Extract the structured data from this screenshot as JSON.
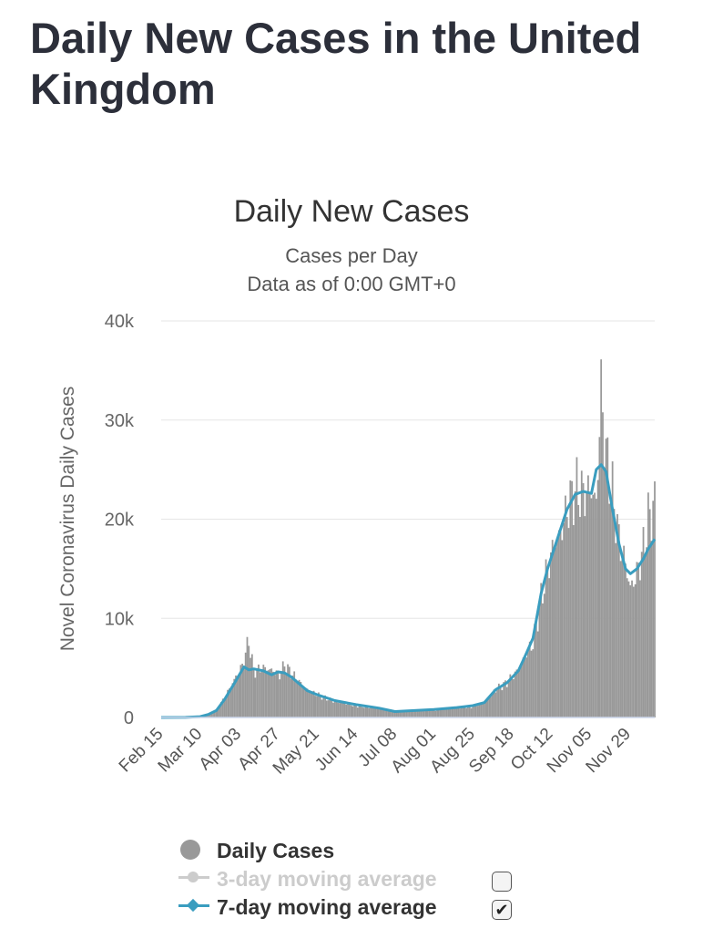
{
  "page": {
    "title": "Daily New Cases in the United Kingdom"
  },
  "chart_data": {
    "type": "bar",
    "title": "Daily New Cases",
    "subtitle": "Cases per Day",
    "subtitle2": "Data as of 0:00 GMT+0",
    "ylabel": "Novel Coronavirus Daily Cases",
    "xlabel": "",
    "ylim": [
      0,
      40000
    ],
    "y_ticks": [
      0,
      10000,
      20000,
      30000,
      40000
    ],
    "y_tick_labels": [
      "0",
      "10k",
      "20k",
      "30k",
      "40k"
    ],
    "grid": true,
    "legend_position": "bottom-left",
    "x_start": "2020-02-15",
    "x_end": "2020-12-15",
    "x_tick_labels": [
      "Feb 15",
      "Mar 10",
      "Apr 03",
      "Apr 27",
      "May 21",
      "Jun 14",
      "Jul 08",
      "Aug 01",
      "Aug 25",
      "Sep 18",
      "Oct 12",
      "Nov 05",
      "Nov 29"
    ],
    "daily_cases_keypoints": [
      [
        "2020-02-15",
        0
      ],
      [
        "2020-03-01",
        10
      ],
      [
        "2020-03-10",
        60
      ],
      [
        "2020-03-15",
        300
      ],
      [
        "2020-03-20",
        700
      ],
      [
        "2020-03-25",
        2000
      ],
      [
        "2020-03-31",
        3800
      ],
      [
        "2020-04-05",
        5200
      ],
      [
        "2020-04-09",
        7800
      ],
      [
        "2020-04-12",
        4600
      ],
      [
        "2020-04-18",
        5000
      ],
      [
        "2020-04-24",
        4700
      ],
      [
        "2020-04-28",
        4300
      ],
      [
        "2020-05-01",
        5300
      ],
      [
        "2020-05-05",
        4500
      ],
      [
        "2020-05-10",
        3600
      ],
      [
        "2020-05-15",
        2800
      ],
      [
        "2020-05-21",
        2300
      ],
      [
        "2020-06-01",
        1600
      ],
      [
        "2020-06-14",
        1200
      ],
      [
        "2020-06-28",
        900
      ],
      [
        "2020-07-08",
        600
      ],
      [
        "2020-07-20",
        700
      ],
      [
        "2020-08-01",
        750
      ],
      [
        "2020-08-15",
        1000
      ],
      [
        "2020-08-25",
        1100
      ],
      [
        "2020-09-01",
        1500
      ],
      [
        "2020-09-08",
        2800
      ],
      [
        "2020-09-15",
        3500
      ],
      [
        "2020-09-22",
        4800
      ],
      [
        "2020-09-27",
        6500
      ],
      [
        "2020-10-01",
        7500
      ],
      [
        "2020-10-06",
        12000
      ],
      [
        "2020-10-10",
        15000
      ],
      [
        "2020-10-14",
        17500
      ],
      [
        "2020-10-18",
        18500
      ],
      [
        "2020-10-22",
        21000
      ],
      [
        "2020-10-27",
        23000
      ],
      [
        "2020-11-01",
        22500
      ],
      [
        "2020-11-06",
        23000
      ],
      [
        "2020-11-09",
        21500
      ],
      [
        "2020-11-12",
        33000
      ],
      [
        "2020-11-15",
        26500
      ],
      [
        "2020-11-19",
        22500
      ],
      [
        "2020-11-23",
        18000
      ],
      [
        "2020-11-27",
        15500
      ],
      [
        "2020-11-30",
        13000
      ],
      [
        "2020-12-04",
        14500
      ],
      [
        "2020-12-08",
        17000
      ],
      [
        "2020-12-11",
        20000
      ],
      [
        "2020-12-15",
        21500
      ]
    ],
    "series": [
      {
        "name": "Daily Cases",
        "color": "#999999"
      },
      {
        "name": "3-day moving average",
        "color": "#cccccc",
        "visible": false
      },
      {
        "name": "7-day moving average",
        "color": "#3a9dbf",
        "visible": true,
        "points": [
          [
            "2020-02-15",
            0
          ],
          [
            "2020-03-01",
            10
          ],
          [
            "2020-03-10",
            80
          ],
          [
            "2020-03-15",
            300
          ],
          [
            "2020-03-20",
            700
          ],
          [
            "2020-03-25",
            1800
          ],
          [
            "2020-04-01",
            3700
          ],
          [
            "2020-04-06",
            5100
          ],
          [
            "2020-04-09",
            4800
          ],
          [
            "2020-04-12",
            4900
          ],
          [
            "2020-04-18",
            4700
          ],
          [
            "2020-04-23",
            4300
          ],
          [
            "2020-04-27",
            4600
          ],
          [
            "2020-05-01",
            4500
          ],
          [
            "2020-05-05",
            4100
          ],
          [
            "2020-05-10",
            3400
          ],
          [
            "2020-05-15",
            2700
          ],
          [
            "2020-05-21",
            2300
          ],
          [
            "2020-06-01",
            1700
          ],
          [
            "2020-06-14",
            1300
          ],
          [
            "2020-06-28",
            950
          ],
          [
            "2020-07-08",
            600
          ],
          [
            "2020-07-20",
            700
          ],
          [
            "2020-08-01",
            800
          ],
          [
            "2020-08-15",
            1000
          ],
          [
            "2020-08-25",
            1200
          ],
          [
            "2020-09-01",
            1500
          ],
          [
            "2020-09-08",
            2800
          ],
          [
            "2020-09-15",
            3500
          ],
          [
            "2020-09-22",
            4700
          ],
          [
            "2020-09-27",
            6500
          ],
          [
            "2020-10-01",
            8000
          ],
          [
            "2020-10-06",
            12500
          ],
          [
            "2020-10-10",
            15000
          ],
          [
            "2020-10-14",
            17000
          ],
          [
            "2020-10-18",
            19000
          ],
          [
            "2020-10-22",
            21000
          ],
          [
            "2020-10-27",
            22500
          ],
          [
            "2020-11-01",
            22800
          ],
          [
            "2020-11-06",
            22600
          ],
          [
            "2020-11-09",
            25000
          ],
          [
            "2020-11-12",
            25500
          ],
          [
            "2020-11-15",
            24800
          ],
          [
            "2020-11-19",
            21000
          ],
          [
            "2020-11-23",
            17500
          ],
          [
            "2020-11-27",
            15000
          ],
          [
            "2020-11-30",
            14500
          ],
          [
            "2020-12-04",
            15000
          ],
          [
            "2020-12-08",
            16000
          ],
          [
            "2020-12-11",
            17000
          ],
          [
            "2020-12-15",
            18000
          ]
        ]
      }
    ]
  },
  "legend": {
    "items": [
      {
        "label": "Daily Cases",
        "toggle": false
      },
      {
        "label": "3-day moving average",
        "toggle": true,
        "checked": false
      },
      {
        "label": "7-day moving average",
        "toggle": true,
        "checked": true
      }
    ]
  },
  "colors": {
    "title": "#2c2f3a",
    "bars": "#999999",
    "ma7": "#3a9dbf",
    "ma3": "#cccccc",
    "grid": "#e6e6e6"
  }
}
